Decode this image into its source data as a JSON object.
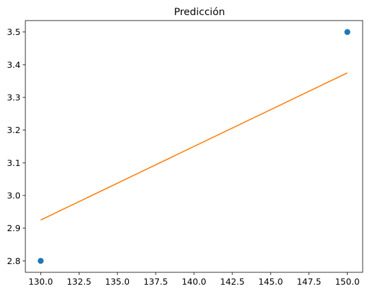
{
  "chart_data": {
    "type": "scatter",
    "title": "Predicción",
    "xlabel": "",
    "ylabel": "",
    "xlim": [
      129.0,
      151.0
    ],
    "ylim": [
      2.765,
      3.535
    ],
    "x_ticks": [
      "130.0",
      "132.5",
      "135.0",
      "137.5",
      "140.0",
      "142.5",
      "145.0",
      "147.5",
      "150.0"
    ],
    "y_ticks": [
      "2.8",
      "2.9",
      "3.0",
      "3.1",
      "3.2",
      "3.3",
      "3.4",
      "3.5"
    ],
    "grid": false,
    "series": [
      {
        "kind": "scatter",
        "color": "#1f77b4",
        "points": [
          {
            "x": 130,
            "y": 2.8
          },
          {
            "x": 150,
            "y": 3.5
          }
        ]
      },
      {
        "kind": "line",
        "color": "#ff7f0e",
        "points": [
          {
            "x": 130,
            "y": 2.925
          },
          {
            "x": 150,
            "y": 3.375
          }
        ]
      }
    ]
  }
}
